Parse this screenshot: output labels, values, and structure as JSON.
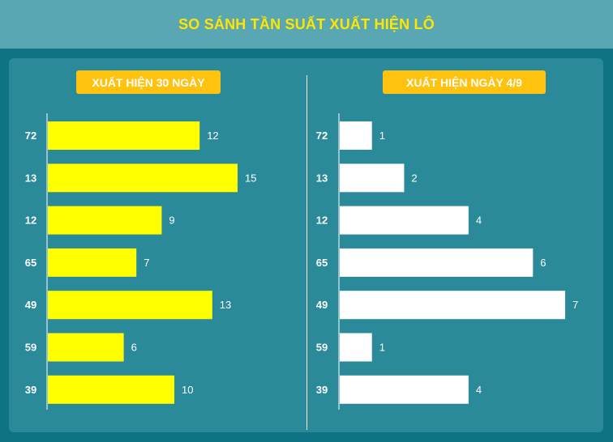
{
  "header": {
    "title": "SO SÁNH TẦN SUẤT XUẤT HIỆN LÔ"
  },
  "colors": {
    "left_bar": "#ffff00",
    "right_bar": "#ffffff",
    "badge": "#ffc20e",
    "title": "#ffe600"
  },
  "chart_data": [
    {
      "type": "bar",
      "orientation": "horizontal",
      "title": "XUẤT HIỆN 30 NGÀY",
      "categories": [
        "72",
        "13",
        "12",
        "65",
        "49",
        "59",
        "39"
      ],
      "values": [
        12,
        15,
        9,
        7,
        13,
        6,
        10
      ],
      "xlim": [
        0,
        15
      ]
    },
    {
      "type": "bar",
      "orientation": "horizontal",
      "title": "XUẤT HIỆN NGÀY 4/9",
      "categories": [
        "72",
        "13",
        "12",
        "65",
        "49",
        "59",
        "39"
      ],
      "values": [
        1,
        2,
        4,
        6,
        7,
        1,
        4
      ],
      "xlim": [
        0,
        7
      ]
    }
  ]
}
